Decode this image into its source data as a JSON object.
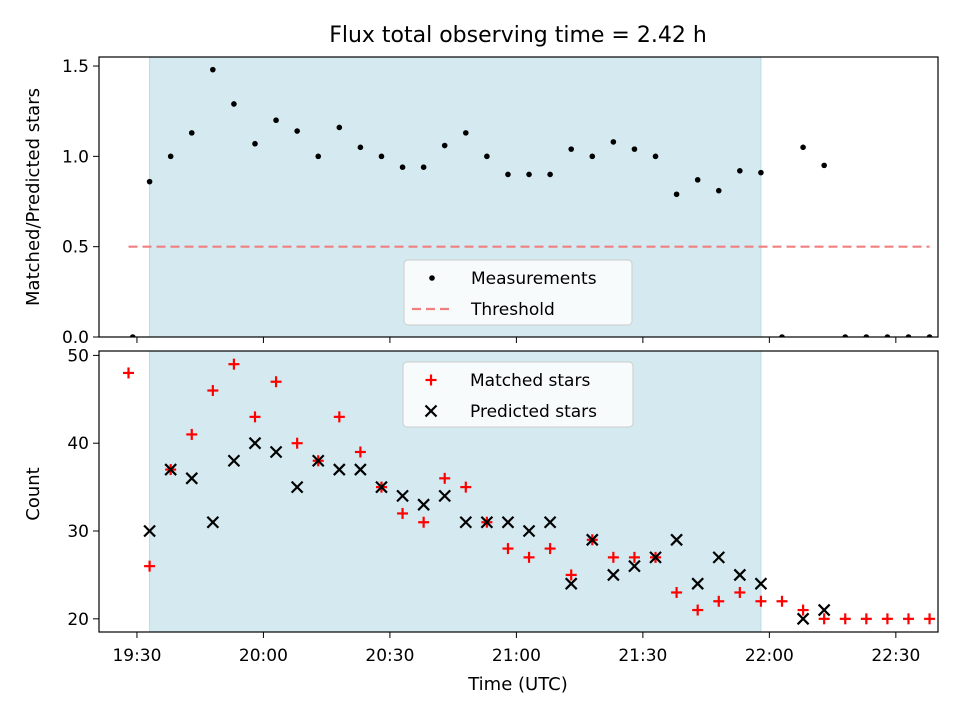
{
  "chart_data": [
    {
      "type": "scatter",
      "title": "Flux total observing time = 2.42 h",
      "xlabel": "",
      "ylabel": "Matched/Predicted stars",
      "xlim": [
        "19:21",
        "22:40"
      ],
      "ylim": [
        0,
        1.55
      ],
      "yticks": [
        0.0,
        0.5,
        1.0,
        1.5
      ],
      "ytick_labels": [
        "0.0",
        "0.5",
        "1.0",
        "1.5"
      ],
      "xticks_shown_labels": false,
      "shaded_interval": [
        "19:33",
        "21:58"
      ],
      "shaded_color": "#d4eaf0",
      "legend_position": "lower center",
      "series": [
        {
          "name": "Measurements",
          "marker": "dot",
          "color": "#000000",
          "x": [
            "19:29",
            "19:33",
            "19:38",
            "19:43",
            "19:48",
            "19:53",
            "19:58",
            "20:03",
            "20:08",
            "20:13",
            "20:18",
            "20:23",
            "20:28",
            "20:33",
            "20:38",
            "20:43",
            "20:48",
            "20:53",
            "20:58",
            "21:03",
            "21:08",
            "21:13",
            "21:18",
            "21:23",
            "21:28",
            "21:33",
            "21:38",
            "21:43",
            "21:48",
            "21:53",
            "21:58",
            "22:03",
            "22:08",
            "22:13",
            "22:18",
            "22:23",
            "22:28",
            "22:33",
            "22:38"
          ],
          "values": [
            0.0,
            0.86,
            1.0,
            1.13,
            1.48,
            1.29,
            1.07,
            1.2,
            1.14,
            1.0,
            1.16,
            1.05,
            1.0,
            0.94,
            0.94,
            1.06,
            1.13,
            1.0,
            0.9,
            0.9,
            0.9,
            1.04,
            1.0,
            1.08,
            1.04,
            1.0,
            0.79,
            0.87,
            0.81,
            0.92,
            0.91,
            0.0,
            1.05,
            0.95,
            0.0,
            0.0,
            0.0,
            0.0,
            0.0
          ]
        },
        {
          "name": "Threshold",
          "style": "dashed",
          "color": "#f08080",
          "x": [
            "19:28",
            "22:38"
          ],
          "values": [
            0.5,
            0.5
          ]
        }
      ]
    },
    {
      "type": "scatter",
      "title": "",
      "xlabel": "Time (UTC)",
      "ylabel": "Count",
      "xlim": [
        "19:21",
        "22:40"
      ],
      "ylim": [
        18.5,
        50.5
      ],
      "yticks": [
        20,
        30,
        40,
        50
      ],
      "ytick_labels": [
        "20",
        "30",
        "40",
        "50"
      ],
      "xticks": [
        "19:30",
        "20:00",
        "20:30",
        "21:00",
        "21:30",
        "22:00",
        "22:30"
      ],
      "xtick_labels": [
        "19:30",
        "20:00",
        "20:30",
        "21:00",
        "21:30",
        "22:00",
        "22:30"
      ],
      "shaded_interval": [
        "19:33",
        "21:58"
      ],
      "shaded_color": "#d4eaf0",
      "legend_position": "upper center",
      "series": [
        {
          "name": "Matched stars",
          "marker": "plus",
          "color": "#ff0000",
          "x": [
            "19:28",
            "19:33",
            "19:38",
            "19:43",
            "19:48",
            "19:53",
            "19:58",
            "20:03",
            "20:08",
            "20:13",
            "20:18",
            "20:23",
            "20:28",
            "20:33",
            "20:38",
            "20:43",
            "20:48",
            "20:53",
            "20:58",
            "21:03",
            "21:08",
            "21:13",
            "21:18",
            "21:23",
            "21:28",
            "21:33",
            "21:38",
            "21:43",
            "21:48",
            "21:53",
            "21:58",
            "22:03",
            "22:08",
            "22:13",
            "22:18",
            "22:23",
            "22:28",
            "22:33",
            "22:38"
          ],
          "values": [
            48,
            26,
            37,
            41,
            46,
            49,
            43,
            47,
            40,
            38,
            43,
            39,
            35,
            32,
            31,
            36,
            35,
            31,
            28,
            27,
            28,
            25,
            29,
            27,
            27,
            27,
            23,
            21,
            22,
            23,
            22,
            22,
            21,
            20,
            20,
            20,
            20,
            20,
            20
          ]
        },
        {
          "name": "Predicted stars",
          "marker": "x",
          "color": "#000000",
          "x": [
            "19:33",
            "19:38",
            "19:43",
            "19:48",
            "19:53",
            "19:58",
            "20:03",
            "20:08",
            "20:13",
            "20:18",
            "20:23",
            "20:28",
            "20:33",
            "20:38",
            "20:43",
            "20:48",
            "20:53",
            "20:58",
            "21:03",
            "21:08",
            "21:13",
            "21:18",
            "21:23",
            "21:28",
            "21:33",
            "21:38",
            "21:43",
            "21:48",
            "21:53",
            "21:58",
            "22:08",
            "22:13"
          ],
          "values": [
            30,
            37,
            36,
            31,
            38,
            40,
            39,
            35,
            38,
            37,
            37,
            35,
            34,
            33,
            34,
            31,
            31,
            31,
            30,
            31,
            24,
            29,
            25,
            26,
            27,
            29,
            24,
            27,
            25,
            24,
            20,
            21
          ]
        }
      ]
    }
  ]
}
